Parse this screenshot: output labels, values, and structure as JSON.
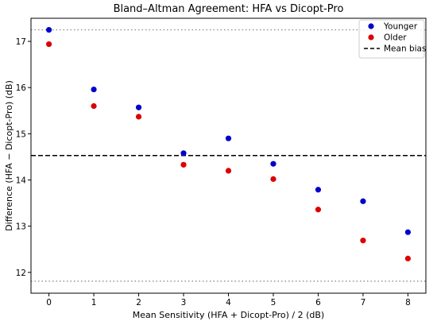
{
  "chart_data": {
    "type": "scatter",
    "title": "Bland–Altman Agreement: HFA vs Dicopt-Pro",
    "xlabel": "Mean Sensitivity (HFA + Dicopt-Pro) / 2 (dB)",
    "ylabel": "Difference (HFA − Dicopt-Pro) (dB)",
    "xlim": [
      -0.4,
      8.4
    ],
    "ylim": [
      11.55,
      17.5
    ],
    "x_ticks": [
      0,
      1,
      2,
      3,
      4,
      5,
      6,
      7,
      8
    ],
    "y_ticks": [
      12,
      13,
      14,
      15,
      16,
      17
    ],
    "grid": false,
    "legend_position": "top-right",
    "series": [
      {
        "name": "Younger",
        "color": "#0000cc",
        "x": [
          0,
          1,
          2,
          3,
          4,
          5,
          6,
          7,
          8
        ],
        "y": [
          17.25,
          15.96,
          15.57,
          14.58,
          14.9,
          14.35,
          13.79,
          13.54,
          12.87
        ]
      },
      {
        "name": "Older",
        "color": "#dd0000",
        "x": [
          0,
          1,
          2,
          3,
          4,
          5,
          6,
          7,
          8
        ],
        "y": [
          16.94,
          15.6,
          15.37,
          14.33,
          14.2,
          14.02,
          13.36,
          12.69,
          12.3
        ]
      }
    ],
    "reference_lines": [
      {
        "name": "Mean bias",
        "y": 14.53,
        "style": "dashed",
        "color": "#000000"
      },
      {
        "y": 17.25,
        "style": "dotted",
        "color": "#808080"
      },
      {
        "y": 11.81,
        "style": "dotted",
        "color": "#808080"
      }
    ],
    "legend": [
      {
        "label": "Younger",
        "marker": "circle",
        "color": "#0000cc"
      },
      {
        "label": "Older",
        "marker": "circle",
        "color": "#dd0000"
      },
      {
        "label": "Mean bias",
        "marker": "dashed-line",
        "color": "#000000"
      }
    ]
  }
}
